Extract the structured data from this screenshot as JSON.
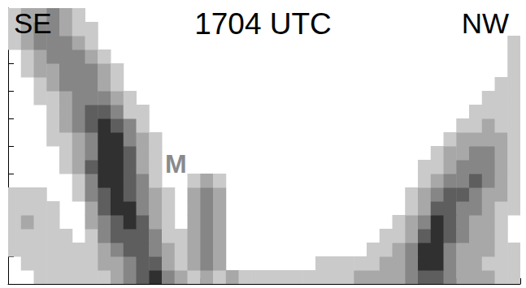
{
  "chart_data": {
    "type": "heatmap",
    "title": "1704 UTC",
    "left_label": "SE",
    "right_label": "NW",
    "annotations": [
      "M"
    ],
    "xlim": [
      0,
      40
    ],
    "ylim": [
      0,
      20
    ],
    "xticks": [
      0,
      2.5,
      5,
      7.5,
      10,
      12.5,
      15,
      17.5,
      20,
      22.5,
      25,
      27.5,
      30,
      32.5,
      35,
      37.5,
      40
    ],
    "yticks": [
      0,
      2,
      4,
      6,
      8,
      10,
      12,
      14,
      16,
      18,
      20
    ],
    "tick_labels": false,
    "grid": false,
    "colors": [
      "#ffffff",
      "#cacaca",
      "#a8a8a8",
      "#868686",
      "#5e5e5e",
      "#303030"
    ],
    "cells": [
      [
        0,
        0,
        1,
        1,
        1,
        1,
        1,
        1,
        2,
        3,
        4,
        5,
        3,
        2,
        1,
        2,
        1,
        2,
        1,
        1,
        1,
        1,
        1,
        1,
        1,
        1,
        1,
        2,
        2,
        2,
        2,
        3,
        4,
        4,
        3,
        2,
        2,
        2,
        1,
        1
      ],
      [
        0,
        1,
        1,
        1,
        1,
        1,
        1,
        2,
        2,
        3,
        4,
        4,
        2,
        1,
        2,
        3,
        2,
        0,
        0,
        0,
        0,
        0,
        0,
        0,
        1,
        1,
        1,
        1,
        1,
        2,
        2,
        3,
        5,
        5,
        3,
        2,
        2,
        1,
        1,
        1
      ],
      [
        1,
        1,
        1,
        1,
        1,
        1,
        1,
        2,
        3,
        4,
        4,
        3,
        2,
        1,
        2,
        3,
        2,
        0,
        0,
        0,
        0,
        0,
        0,
        0,
        0,
        0,
        0,
        0,
        1,
        1,
        2,
        3,
        5,
        5,
        3,
        2,
        2,
        2,
        1,
        1
      ],
      [
        1,
        1,
        1,
        1,
        1,
        0,
        1,
        3,
        4,
        4,
        4,
        3,
        1,
        1,
        2,
        3,
        2,
        0,
        0,
        0,
        0,
        0,
        0,
        0,
        0,
        0,
        0,
        0,
        0,
        1,
        1,
        2,
        4,
        5,
        4,
        3,
        2,
        2,
        1,
        0
      ],
      [
        1,
        2,
        1,
        1,
        0,
        0,
        2,
        3,
        4,
        5,
        4,
        2,
        1,
        0,
        2,
        3,
        2,
        0,
        0,
        0,
        0,
        0,
        0,
        0,
        0,
        0,
        0,
        0,
        0,
        0,
        1,
        2,
        3,
        5,
        4,
        3,
        2,
        2,
        1,
        0
      ],
      [
        1,
        1,
        1,
        1,
        0,
        0,
        2,
        4,
        5,
        5,
        3,
        2,
        1,
        0,
        2,
        3,
        2,
        0,
        0,
        0,
        0,
        0,
        0,
        0,
        0,
        0,
        0,
        0,
        0,
        0,
        0,
        1,
        2,
        4,
        4,
        3,
        3,
        2,
        1,
        1
      ],
      [
        1,
        1,
        1,
        0,
        0,
        1,
        3,
        4,
        5,
        4,
        3,
        2,
        1,
        0,
        2,
        3,
        2,
        0,
        0,
        0,
        0,
        0,
        0,
        0,
        0,
        0,
        0,
        0,
        0,
        0,
        0,
        1,
        2,
        3,
        4,
        4,
        3,
        2,
        2,
        1
      ],
      [
        0,
        0,
        0,
        0,
        0,
        1,
        3,
        5,
        5,
        4,
        3,
        1,
        0,
        0,
        1,
        2,
        1,
        0,
        0,
        0,
        0,
        0,
        0,
        0,
        0,
        0,
        0,
        0,
        0,
        0,
        0,
        0,
        1,
        2,
        3,
        3,
        4,
        3,
        2,
        1
      ],
      [
        0,
        0,
        0,
        0,
        1,
        2,
        4,
        5,
        5,
        4,
        2,
        1,
        0,
        0,
        0,
        0,
        0,
        0,
        0,
        0,
        0,
        0,
        0,
        0,
        0,
        0,
        0,
        0,
        0,
        0,
        0,
        0,
        1,
        1,
        2,
        3,
        3,
        3,
        2,
        1
      ],
      [
        0,
        0,
        0,
        0,
        1,
        2,
        3,
        5,
        5,
        4,
        2,
        1,
        0,
        0,
        0,
        0,
        0,
        0,
        0,
        0,
        0,
        0,
        0,
        0,
        0,
        0,
        0,
        0,
        0,
        0,
        0,
        0,
        0,
        1,
        2,
        2,
        3,
        3,
        2,
        1
      ],
      [
        0,
        0,
        0,
        1,
        1,
        2,
        3,
        5,
        5,
        3,
        2,
        1,
        0,
        0,
        0,
        0,
        0,
        0,
        0,
        0,
        0,
        0,
        0,
        0,
        0,
        0,
        0,
        0,
        0,
        0,
        0,
        0,
        0,
        0,
        1,
        2,
        2,
        2,
        2,
        1
      ],
      [
        0,
        0,
        0,
        1,
        2,
        3,
        4,
        5,
        4,
        3,
        1,
        0,
        0,
        0,
        0,
        0,
        0,
        0,
        0,
        0,
        0,
        0,
        0,
        0,
        0,
        0,
        0,
        0,
        0,
        0,
        0,
        0,
        0,
        0,
        0,
        1,
        1,
        2,
        1,
        1
      ],
      [
        0,
        0,
        0,
        1,
        2,
        3,
        4,
        4,
        3,
        1,
        1,
        0,
        0,
        0,
        0,
        0,
        0,
        0,
        0,
        0,
        0,
        0,
        0,
        0,
        0,
        0,
        0,
        0,
        0,
        0,
        0,
        0,
        0,
        0,
        0,
        0,
        1,
        1,
        1,
        1
      ],
      [
        0,
        0,
        1,
        1,
        2,
        3,
        3,
        3,
        2,
        1,
        0,
        0,
        0,
        0,
        0,
        0,
        0,
        0,
        0,
        0,
        0,
        0,
        0,
        0,
        0,
        0,
        0,
        0,
        0,
        0,
        0,
        0,
        0,
        0,
        0,
        0,
        0,
        1,
        1,
        1
      ],
      [
        0,
        0,
        1,
        2,
        3,
        3,
        3,
        2,
        1,
        0,
        0,
        0,
        0,
        0,
        0,
        0,
        0,
        0,
        0,
        0,
        0,
        0,
        0,
        0,
        0,
        0,
        0,
        0,
        0,
        0,
        0,
        0,
        0,
        0,
        0,
        0,
        0,
        0,
        1,
        1
      ],
      [
        0,
        1,
        2,
        2,
        3,
        3,
        3,
        2,
        1,
        0,
        0,
        0,
        0,
        0,
        0,
        0,
        0,
        0,
        0,
        0,
        0,
        0,
        0,
        0,
        0,
        0,
        0,
        0,
        0,
        0,
        0,
        0,
        0,
        0,
        0,
        0,
        0,
        0,
        0,
        1
      ],
      [
        0,
        1,
        2,
        3,
        3,
        3,
        2,
        1,
        0,
        0,
        0,
        0,
        0,
        0,
        0,
        0,
        0,
        0,
        0,
        0,
        0,
        0,
        0,
        0,
        0,
        0,
        0,
        0,
        0,
        0,
        0,
        0,
        0,
        0,
        0,
        0,
        0,
        0,
        0,
        1
      ],
      [
        1,
        2,
        3,
        3,
        3,
        2,
        1,
        0,
        0,
        0,
        0,
        0,
        0,
        0,
        0,
        0,
        0,
        0,
        0,
        0,
        0,
        0,
        0,
        0,
        0,
        0,
        0,
        0,
        0,
        0,
        0,
        0,
        0,
        0,
        0,
        0,
        0,
        0,
        0,
        1
      ],
      [
        1,
        2,
        3,
        3,
        2,
        1,
        1,
        0,
        0,
        0,
        0,
        0,
        0,
        0,
        0,
        0,
        0,
        0,
        0,
        0,
        0,
        0,
        0,
        0,
        0,
        0,
        0,
        0,
        0,
        0,
        0,
        0,
        0,
        0,
        0,
        0,
        0,
        0,
        0,
        0
      ],
      [
        1,
        2,
        2,
        3,
        2,
        1,
        0,
        0,
        0,
        0,
        0,
        0,
        0,
        0,
        0,
        0,
        0,
        0,
        0,
        0,
        0,
        0,
        0,
        0,
        0,
        0,
        0,
        0,
        0,
        0,
        0,
        0,
        0,
        0,
        0,
        0,
        0,
        0,
        0,
        0
      ]
    ]
  }
}
